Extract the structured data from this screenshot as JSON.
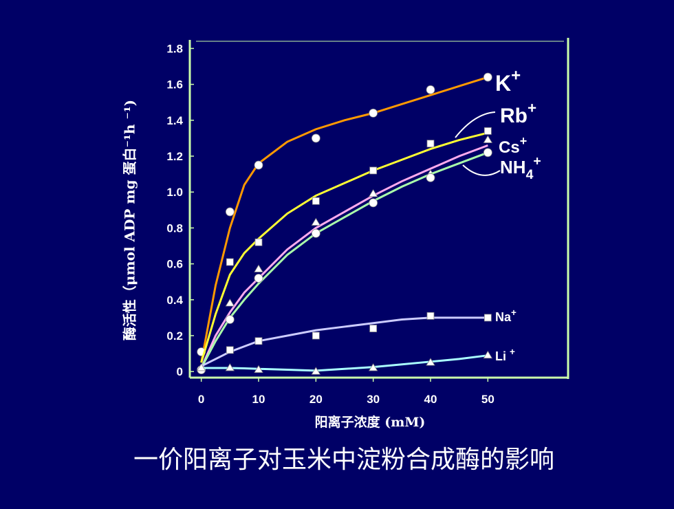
{
  "chart_data": {
    "type": "line",
    "y_label": "酶活性（μmol ADP mg 蛋白⁻¹h ⁻¹)",
    "x_label": "阳离子浓度 (mM)",
    "caption": "一价阳离子对玉米中淀粉合成酶的影响",
    "x": [
      0,
      5,
      10,
      20,
      30,
      40,
      50
    ],
    "fit_x": [
      0,
      2.5,
      5,
      7.5,
      10,
      15,
      20,
      25,
      30,
      35,
      40,
      45,
      50
    ],
    "xlim": [
      -2,
      64
    ],
    "ylim": [
      -0.03,
      1.84
    ],
    "xticks": [
      0,
      10,
      20,
      30,
      40,
      50
    ],
    "yticks": [
      0,
      0.2,
      0.4,
      0.6,
      0.8,
      {
        "value": 1,
        "label": "1.0"
      },
      1.2,
      1.4,
      1.6,
      1.8
    ],
    "series": [
      {
        "name": "K",
        "sup": "+",
        "color": "#ff9900",
        "marker": "circle",
        "values": [
          0.11,
          0.89,
          1.15,
          1.3,
          1.44,
          1.57,
          1.64
        ],
        "fit": [
          0.05,
          0.48,
          0.8,
          1.04,
          1.16,
          1.28,
          1.35,
          1.4,
          1.44,
          1.49,
          1.54,
          1.59,
          1.64
        ]
      },
      {
        "name": "Rb",
        "sup": "+",
        "color": "#ffff33",
        "marker": "square",
        "values": [
          null,
          0.61,
          0.72,
          0.95,
          1.12,
          1.27,
          1.34
        ],
        "fit": [
          0.05,
          0.32,
          0.54,
          0.66,
          0.74,
          0.88,
          0.98,
          1.05,
          1.12,
          1.18,
          1.24,
          1.29,
          1.33
        ]
      },
      {
        "name": "Cs",
        "sup": "+",
        "color": "#ffaaee",
        "marker": "triangle",
        "values": [
          null,
          0.38,
          0.57,
          0.83,
          0.99,
          1.1,
          1.29
        ],
        "fit": [
          0.02,
          0.2,
          0.33,
          0.44,
          0.52,
          0.68,
          0.8,
          0.89,
          0.98,
          1.06,
          1.13,
          1.2,
          1.26
        ]
      },
      {
        "name": "NH",
        "sub": "4",
        "sup": "+",
        "color": "#aaffaa",
        "marker": "circle",
        "values": [
          0.01,
          0.29,
          0.52,
          0.77,
          0.94,
          1.08,
          1.22
        ],
        "fit": [
          0.02,
          0.17,
          0.3,
          0.4,
          0.49,
          0.65,
          0.77,
          0.86,
          0.95,
          1.03,
          1.1,
          1.16,
          1.22
        ]
      },
      {
        "name": "Na",
        "sup": "+",
        "color": "#ccccff",
        "marker": "square",
        "values": [
          null,
          0.12,
          0.17,
          0.2,
          0.24,
          0.31,
          0.3
        ],
        "fit": [
          0.03,
          0.07,
          0.11,
          0.14,
          0.17,
          0.2,
          0.23,
          0.25,
          0.27,
          0.29,
          0.3,
          0.3,
          0.3
        ]
      },
      {
        "name": "Li ",
        "sup": "+",
        "color": "#aaffff",
        "marker": "triangle",
        "values": [
          0.02,
          0.02,
          0.01,
          0.0,
          0.02,
          0.05,
          0.09
        ],
        "fit": [
          0.02,
          0.02,
          0.02,
          0.018,
          0.015,
          0.01,
          0.005,
          0.015,
          0.025,
          0.04,
          0.055,
          0.07,
          0.09
        ]
      }
    ]
  }
}
